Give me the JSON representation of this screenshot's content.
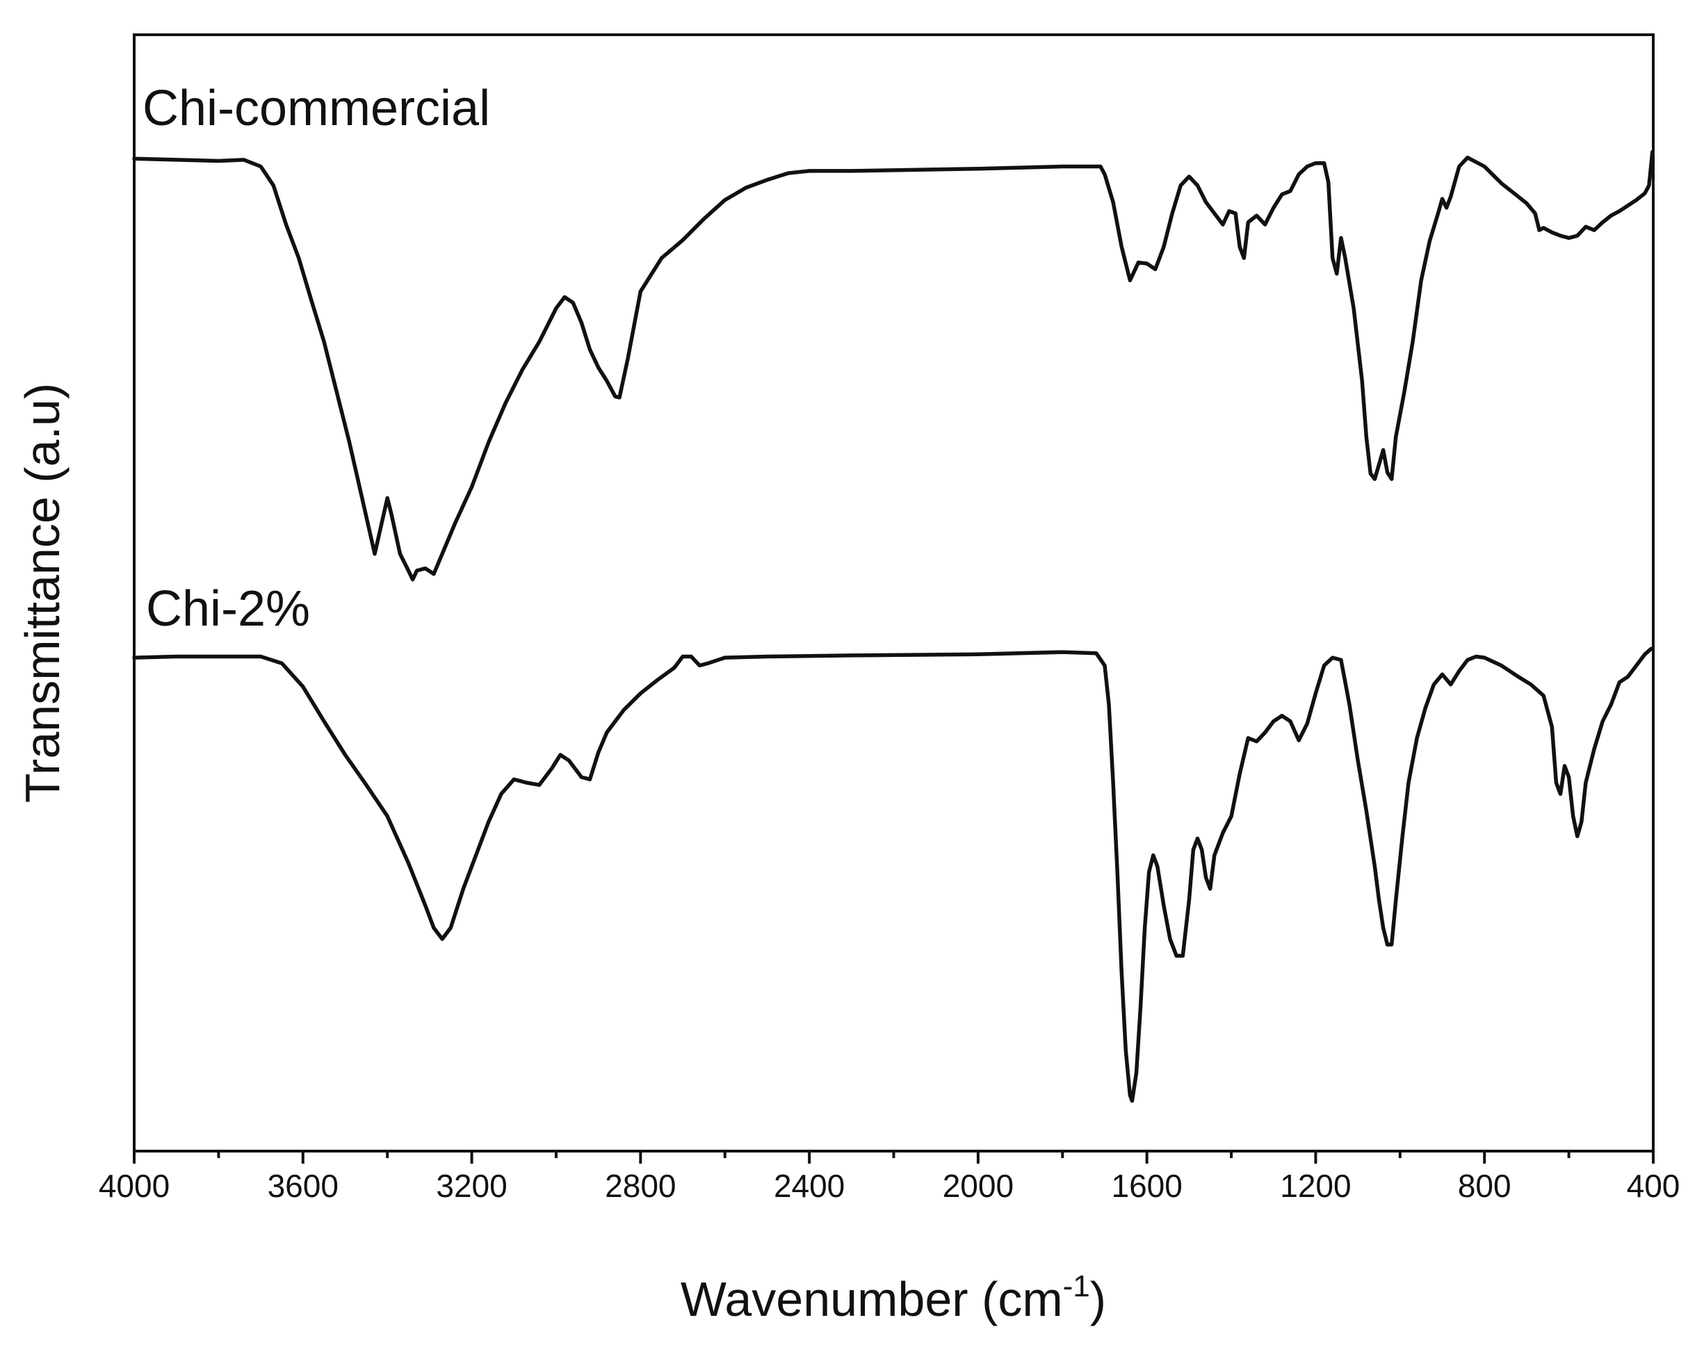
{
  "chart_data": {
    "type": "line",
    "title": "",
    "xlabel": "Wavenumber (cm",
    "xlabel_sup": "-1",
    "xlabel_close": ")",
    "ylabel": "Transmittance (a.u)",
    "xlim": [
      4000,
      400
    ],
    "x_reversed": true,
    "ylim": [
      0,
      1
    ],
    "y_ticks_shown": false,
    "grid": false,
    "legend": "none",
    "x_ticks": [
      4000,
      3600,
      3200,
      2800,
      2400,
      2000,
      1600,
      1200,
      800,
      400
    ],
    "x_tick_labels": [
      "4000",
      "3600",
      "3200",
      "2800",
      "2400",
      "2000",
      "1600",
      "1200",
      "800",
      "400"
    ],
    "x_minor_step": 200,
    "series": [
      {
        "name": "Chi-commercial",
        "color": "#111111",
        "points": [
          [
            4000,
            0.889
          ],
          [
            3900,
            0.888
          ],
          [
            3800,
            0.887
          ],
          [
            3740,
            0.888
          ],
          [
            3700,
            0.882
          ],
          [
            3670,
            0.865
          ],
          [
            3640,
            0.83
          ],
          [
            3610,
            0.8
          ],
          [
            3580,
            0.762
          ],
          [
            3550,
            0.725
          ],
          [
            3520,
            0.68
          ],
          [
            3490,
            0.635
          ],
          [
            3460,
            0.585
          ],
          [
            3430,
            0.535
          ],
          [
            3400,
            0.585
          ],
          [
            3390,
            0.57
          ],
          [
            3370,
            0.535
          ],
          [
            3350,
            0.52
          ],
          [
            3340,
            0.512
          ],
          [
            3330,
            0.52
          ],
          [
            3310,
            0.522
          ],
          [
            3290,
            0.517
          ],
          [
            3270,
            0.535
          ],
          [
            3240,
            0.562
          ],
          [
            3200,
            0.595
          ],
          [
            3160,
            0.635
          ],
          [
            3120,
            0.67
          ],
          [
            3080,
            0.7
          ],
          [
            3040,
            0.725
          ],
          [
            3000,
            0.755
          ],
          [
            2980,
            0.765
          ],
          [
            2960,
            0.76
          ],
          [
            2940,
            0.742
          ],
          [
            2920,
            0.718
          ],
          [
            2900,
            0.702
          ],
          [
            2880,
            0.69
          ],
          [
            2860,
            0.676
          ],
          [
            2850,
            0.675
          ],
          [
            2830,
            0.71
          ],
          [
            2800,
            0.77
          ],
          [
            2750,
            0.8
          ],
          [
            2700,
            0.816
          ],
          [
            2650,
            0.835
          ],
          [
            2600,
            0.852
          ],
          [
            2550,
            0.863
          ],
          [
            2500,
            0.87
          ],
          [
            2450,
            0.876
          ],
          [
            2400,
            0.878
          ],
          [
            2300,
            0.878
          ],
          [
            2000,
            0.88
          ],
          [
            1800,
            0.882
          ],
          [
            1710,
            0.882
          ],
          [
            1700,
            0.875
          ],
          [
            1680,
            0.85
          ],
          [
            1660,
            0.81
          ],
          [
            1640,
            0.78
          ],
          [
            1620,
            0.796
          ],
          [
            1600,
            0.795
          ],
          [
            1580,
            0.79
          ],
          [
            1560,
            0.81
          ],
          [
            1540,
            0.84
          ],
          [
            1520,
            0.865
          ],
          [
            1500,
            0.873
          ],
          [
            1480,
            0.865
          ],
          [
            1460,
            0.85
          ],
          [
            1440,
            0.84
          ],
          [
            1420,
            0.83
          ],
          [
            1405,
            0.842
          ],
          [
            1390,
            0.84
          ],
          [
            1380,
            0.81
          ],
          [
            1370,
            0.8
          ],
          [
            1360,
            0.832
          ],
          [
            1340,
            0.838
          ],
          [
            1320,
            0.83
          ],
          [
            1300,
            0.845
          ],
          [
            1280,
            0.857
          ],
          [
            1260,
            0.86
          ],
          [
            1240,
            0.875
          ],
          [
            1220,
            0.882
          ],
          [
            1200,
            0.885
          ],
          [
            1180,
            0.885
          ],
          [
            1170,
            0.868
          ],
          [
            1160,
            0.8
          ],
          [
            1150,
            0.786
          ],
          [
            1140,
            0.818
          ],
          [
            1130,
            0.8
          ],
          [
            1110,
            0.755
          ],
          [
            1090,
            0.69
          ],
          [
            1080,
            0.64
          ],
          [
            1070,
            0.607
          ],
          [
            1060,
            0.602
          ],
          [
            1050,
            0.615
          ],
          [
            1040,
            0.628
          ],
          [
            1030,
            0.608
          ],
          [
            1020,
            0.602
          ],
          [
            1010,
            0.64
          ],
          [
            990,
            0.68
          ],
          [
            970,
            0.725
          ],
          [
            950,
            0.78
          ],
          [
            930,
            0.815
          ],
          [
            910,
            0.84
          ],
          [
            900,
            0.853
          ],
          [
            890,
            0.845
          ],
          [
            880,
            0.855
          ],
          [
            860,
            0.882
          ],
          [
            840,
            0.89
          ],
          [
            800,
            0.882
          ],
          [
            760,
            0.867
          ],
          [
            720,
            0.855
          ],
          [
            700,
            0.849
          ],
          [
            680,
            0.84
          ],
          [
            670,
            0.825
          ],
          [
            660,
            0.827
          ],
          [
            640,
            0.823
          ],
          [
            620,
            0.82
          ],
          [
            600,
            0.818
          ],
          [
            580,
            0.82
          ],
          [
            560,
            0.828
          ],
          [
            540,
            0.825
          ],
          [
            520,
            0.832
          ],
          [
            500,
            0.838
          ],
          [
            480,
            0.842
          ],
          [
            460,
            0.847
          ],
          [
            440,
            0.852
          ],
          [
            420,
            0.858
          ],
          [
            410,
            0.865
          ],
          [
            402,
            0.895
          ]
        ]
      },
      {
        "name": "Chi-2%",
        "color": "#111111",
        "points": [
          [
            4000,
            0.442
          ],
          [
            3900,
            0.443
          ],
          [
            3800,
            0.443
          ],
          [
            3700,
            0.443
          ],
          [
            3650,
            0.437
          ],
          [
            3600,
            0.416
          ],
          [
            3550,
            0.385
          ],
          [
            3500,
            0.355
          ],
          [
            3450,
            0.328
          ],
          [
            3400,
            0.3
          ],
          [
            3350,
            0.258
          ],
          [
            3310,
            0.22
          ],
          [
            3290,
            0.2
          ],
          [
            3270,
            0.19
          ],
          [
            3250,
            0.2
          ],
          [
            3220,
            0.235
          ],
          [
            3190,
            0.265
          ],
          [
            3160,
            0.295
          ],
          [
            3130,
            0.32
          ],
          [
            3100,
            0.333
          ],
          [
            3070,
            0.33
          ],
          [
            3040,
            0.328
          ],
          [
            3010,
            0.343
          ],
          [
            2990,
            0.355
          ],
          [
            2970,
            0.35
          ],
          [
            2940,
            0.335
          ],
          [
            2920,
            0.333
          ],
          [
            2900,
            0.357
          ],
          [
            2880,
            0.375
          ],
          [
            2860,
            0.385
          ],
          [
            2840,
            0.395
          ],
          [
            2800,
            0.41
          ],
          [
            2760,
            0.422
          ],
          [
            2720,
            0.433
          ],
          [
            2700,
            0.443
          ],
          [
            2680,
            0.443
          ],
          [
            2660,
            0.435
          ],
          [
            2640,
            0.437
          ],
          [
            2600,
            0.442
          ],
          [
            2500,
            0.443
          ],
          [
            2300,
            0.444
          ],
          [
            2000,
            0.445
          ],
          [
            1800,
            0.447
          ],
          [
            1720,
            0.446
          ],
          [
            1700,
            0.435
          ],
          [
            1690,
            0.4
          ],
          [
            1680,
            0.33
          ],
          [
            1670,
            0.25
          ],
          [
            1660,
            0.16
          ],
          [
            1650,
            0.09
          ],
          [
            1640,
            0.05
          ],
          [
            1635,
            0.045
          ],
          [
            1625,
            0.07
          ],
          [
            1615,
            0.13
          ],
          [
            1605,
            0.2
          ],
          [
            1595,
            0.25
          ],
          [
            1585,
            0.265
          ],
          [
            1575,
            0.255
          ],
          [
            1560,
            0.22
          ],
          [
            1545,
            0.19
          ],
          [
            1530,
            0.175
          ],
          [
            1515,
            0.175
          ],
          [
            1500,
            0.225
          ],
          [
            1490,
            0.27
          ],
          [
            1480,
            0.28
          ],
          [
            1470,
            0.27
          ],
          [
            1460,
            0.245
          ],
          [
            1450,
            0.235
          ],
          [
            1440,
            0.265
          ],
          [
            1420,
            0.285
          ],
          [
            1400,
            0.3
          ],
          [
            1380,
            0.338
          ],
          [
            1360,
            0.37
          ],
          [
            1340,
            0.367
          ],
          [
            1320,
            0.375
          ],
          [
            1300,
            0.385
          ],
          [
            1280,
            0.39
          ],
          [
            1260,
            0.385
          ],
          [
            1240,
            0.368
          ],
          [
            1220,
            0.383
          ],
          [
            1200,
            0.41
          ],
          [
            1180,
            0.435
          ],
          [
            1160,
            0.442
          ],
          [
            1140,
            0.44
          ],
          [
            1120,
            0.4
          ],
          [
            1100,
            0.35
          ],
          [
            1080,
            0.305
          ],
          [
            1060,
            0.255
          ],
          [
            1050,
            0.225
          ],
          [
            1040,
            0.2
          ],
          [
            1030,
            0.185
          ],
          [
            1020,
            0.185
          ],
          [
            1010,
            0.225
          ],
          [
            995,
            0.28
          ],
          [
            980,
            0.33
          ],
          [
            960,
            0.37
          ],
          [
            940,
            0.397
          ],
          [
            920,
            0.418
          ],
          [
            900,
            0.427
          ],
          [
            880,
            0.418
          ],
          [
            860,
            0.43
          ],
          [
            840,
            0.44
          ],
          [
            820,
            0.443
          ],
          [
            800,
            0.442
          ],
          [
            760,
            0.435
          ],
          [
            720,
            0.425
          ],
          [
            690,
            0.418
          ],
          [
            660,
            0.408
          ],
          [
            640,
            0.38
          ],
          [
            630,
            0.33
          ],
          [
            620,
            0.32
          ],
          [
            610,
            0.345
          ],
          [
            600,
            0.335
          ],
          [
            590,
            0.3
          ],
          [
            580,
            0.282
          ],
          [
            570,
            0.295
          ],
          [
            560,
            0.33
          ],
          [
            540,
            0.36
          ],
          [
            520,
            0.385
          ],
          [
            500,
            0.4
          ],
          [
            480,
            0.42
          ],
          [
            460,
            0.425
          ],
          [
            440,
            0.435
          ],
          [
            420,
            0.445
          ],
          [
            405,
            0.45
          ]
        ]
      }
    ]
  }
}
